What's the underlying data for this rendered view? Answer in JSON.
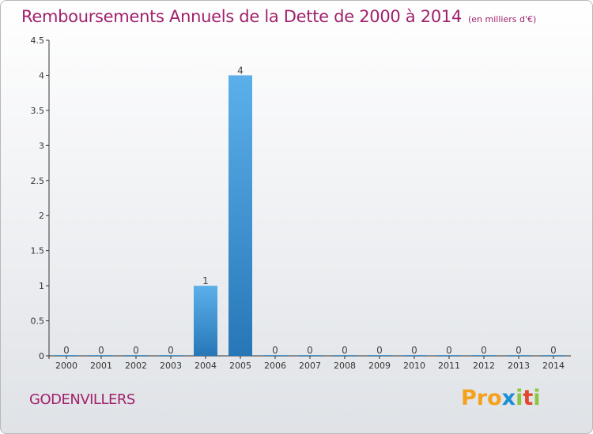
{
  "chart_data": {
    "type": "bar",
    "title": "Remboursements Annuels de la Dette de 2000 à 2014",
    "unit_label": "(en milliers d'€)",
    "categories": [
      "2000",
      "2001",
      "2002",
      "2003",
      "2004",
      "2005",
      "2006",
      "2007",
      "2008",
      "2009",
      "2010",
      "2011",
      "2012",
      "2013",
      "2014"
    ],
    "values": [
      0,
      0,
      0,
      0,
      1,
      4,
      0,
      0,
      0,
      0,
      0,
      0,
      0,
      0,
      0
    ],
    "data_labels": [
      "0",
      "0",
      "0",
      "0",
      "1",
      "4",
      "0",
      "0",
      "0",
      "0",
      "0",
      "0",
      "0",
      "0",
      "0"
    ],
    "yticks": [
      0,
      0.5,
      1,
      1.5,
      2,
      2.5,
      3,
      3.5,
      4,
      4.5
    ],
    "ytick_labels": [
      "0",
      "0.5",
      "1",
      "1.5",
      "2",
      "2.5",
      "3",
      "3.5",
      "4",
      "4.5"
    ],
    "ylim": [
      0,
      4.5
    ],
    "xlabel": "",
    "ylabel": "",
    "grid": false,
    "colors": {
      "bar_light": "#5cb0ea",
      "bar_dark": "#2777b8",
      "axis": "#333333",
      "title": "#a0216c"
    }
  },
  "footer": {
    "city": "GODENVILLERS",
    "logo": {
      "part1": "Pro",
      "part2": "x",
      "part3": "i",
      "part4": "t",
      "part5": "i"
    }
  }
}
